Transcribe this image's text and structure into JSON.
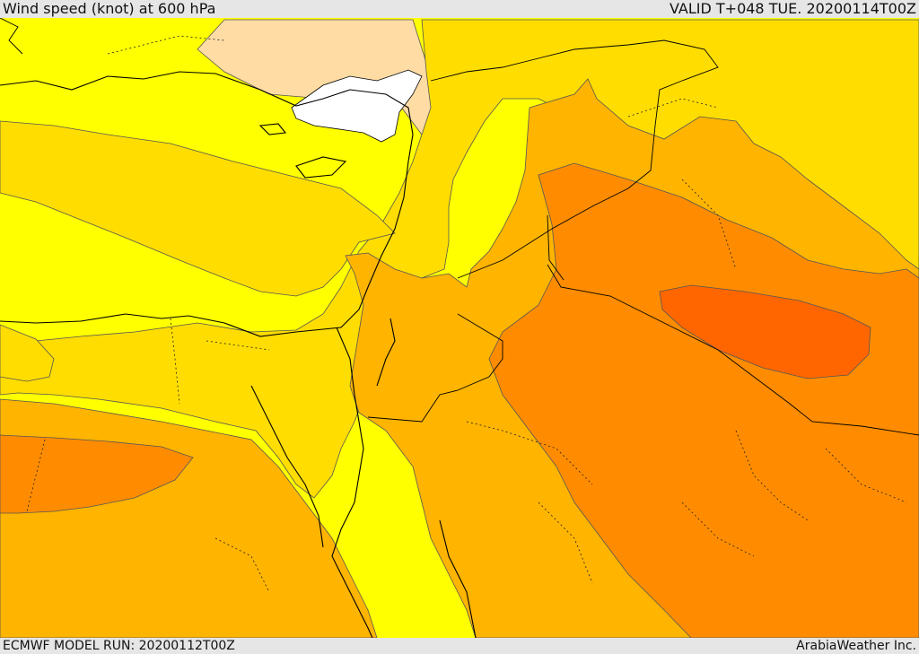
{
  "header": {
    "title": "Wind speed (knot) at 600 hPa",
    "valid": "VALID T+048 TUE. 20200114T00Z"
  },
  "footer": {
    "model_run": "ECMWF MODEL RUN: 20200112T00Z",
    "credit": "ArabiaWeather Inc."
  },
  "map": {
    "colors": {
      "no_data": "#ffffff",
      "band_1": "#ffdca4",
      "band_2": "#ffff00",
      "band_3": "#ffdd00",
      "band_4": "#ffb400",
      "band_5": "#ff8c00",
      "band_6": "#ff6600",
      "coastline": "#000000",
      "contour": "#555555"
    }
  }
}
